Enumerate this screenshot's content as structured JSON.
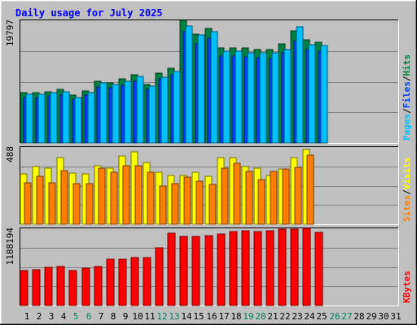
{
  "chart_data": {
    "type": "bar",
    "title": "Daily usage for July 2025",
    "categories": [
      "1",
      "2",
      "3",
      "4",
      "5",
      "6",
      "7",
      "8",
      "9",
      "10",
      "11",
      "12",
      "13",
      "14",
      "15",
      "16",
      "17",
      "18",
      "19",
      "20",
      "21",
      "22",
      "23",
      "24",
      "25",
      "26",
      "27",
      "28",
      "29",
      "30",
      "31"
    ],
    "weekend_days": [
      "5",
      "6",
      "12",
      "13",
      "19",
      "20",
      "26",
      "27"
    ],
    "panels": [
      {
        "id": "hits-files-pages",
        "ylabel_parts": [
          {
            "text": "Pages",
            "color": "#00c0ff"
          },
          {
            "text": "/",
            "color": "#000000"
          },
          {
            "text": "Files",
            "color": "#0040ff"
          },
          {
            "text": "/",
            "color": "#000000"
          },
          {
            "text": "Hits",
            "color": "#008040"
          }
        ],
        "max_label": "19797",
        "ylim": [
          0,
          19797
        ],
        "series": [
          {
            "name": "Hits",
            "color": "#008040",
            "values": [
              8100,
              8100,
              8300,
              8600,
              7700,
              8400,
              10000,
              9700,
              10300,
              11000,
              9500,
              11300,
              12000,
              19800,
              17600,
              18500,
              15400,
              15300,
              15300,
              15100,
              15100,
              16000,
              18100,
              16600,
              16200,
              null,
              null,
              null,
              null,
              null,
              null
            ]
          },
          {
            "name": "Files",
            "color": "#0040ff",
            "values": [
              7300,
              7400,
              7600,
              7800,
              7100,
              7700,
              9100,
              8900,
              9300,
              10000,
              8700,
              10300,
              11000,
              18000,
              16000,
              16900,
              14000,
              14000,
              13900,
              13800,
              13700,
              14600,
              16500,
              15100,
              14800,
              null,
              null,
              null,
              null,
              null,
              null
            ]
          },
          {
            "name": "Pages",
            "color": "#00c0ff",
            "values": [
              7900,
              7900,
              8100,
              8300,
              7400,
              8100,
              9700,
              9400,
              9900,
              10700,
              9200,
              10600,
              11600,
              18900,
              17400,
              17900,
              14800,
              14800,
              14600,
              14500,
              14500,
              15100,
              18700,
              15900,
              15700,
              null,
              null,
              null,
              null,
              null,
              null
            ]
          }
        ]
      },
      {
        "id": "visits-sites",
        "ylabel_parts": [
          {
            "text": "Sites",
            "color": "#ff8000"
          },
          {
            "text": "/",
            "color": "#000000"
          },
          {
            "text": "Visits",
            "color": "#ffff00"
          }
        ],
        "max_label": "488",
        "ylim": [
          0,
          488
        ],
        "series": [
          {
            "name": "Visits",
            "color": "#ffff00",
            "values": [
              320,
              363,
              352,
              423,
              323,
              320,
              369,
              352,
              429,
              457,
              392,
              330,
              307,
              307,
              330,
              304,
              423,
              423,
              363,
              357,
              310,
              349,
              423,
              474,
              null,
              null,
              null,
              null,
              null,
              null,
              null
            ]
          },
          {
            "name": "Sites",
            "color": "#ff8000",
            "values": [
              264,
              304,
              264,
              340,
              258,
              258,
              357,
              330,
              370,
              370,
              330,
              239,
              258,
              299,
              270,
              254,
              352,
              386,
              335,
              280,
              335,
              349,
              358,
              439,
              null,
              null,
              null,
              null,
              null,
              null,
              null
            ]
          }
        ]
      },
      {
        "id": "kbytes",
        "ylabel_parts": [
          {
            "text": "KBytes",
            "color": "#ff0000"
          }
        ],
        "max_label": "1188194",
        "ylim": [
          0,
          1188194
        ],
        "series": [
          {
            "name": "KBytes",
            "color": "#ff0000",
            "values": [
              538000,
              555000,
              589000,
              606000,
              538000,
              572000,
              606000,
              715000,
              715000,
              732000,
              732000,
              890000,
              1112000,
              1061000,
              1069000,
              1078000,
              1095000,
              1137000,
              1146000,
              1137000,
              1154000,
              1180000,
              1180000,
              1188000,
              1128000,
              null,
              null,
              null,
              null,
              null,
              null
            ]
          }
        ]
      }
    ]
  }
}
